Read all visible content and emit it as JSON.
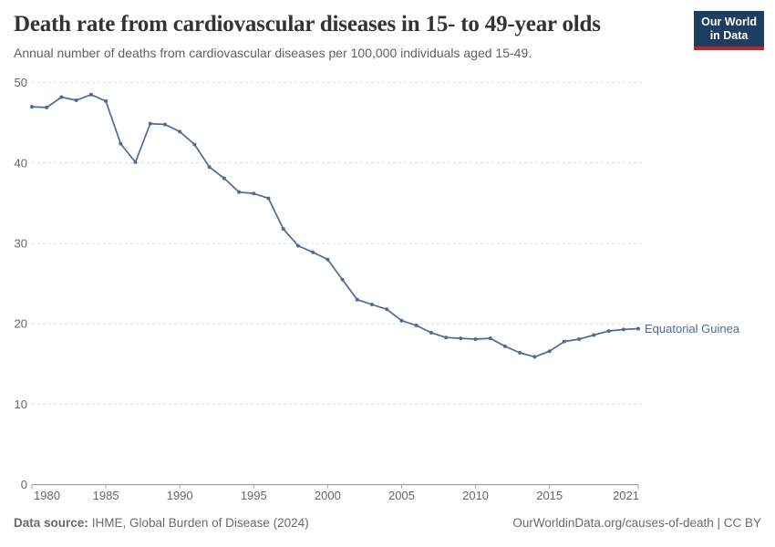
{
  "header": {
    "title": "Death rate from cardiovascular diseases in 15- to 49-year olds",
    "subtitle": "Annual number of deaths from cardiovascular diseases per 100,000 individuals aged 15-49.",
    "logo": {
      "line1": "Our World",
      "line2": "in Data",
      "bg_color": "#1d3d63",
      "accent_color": "#b5292c"
    }
  },
  "footer": {
    "source_label": "Data source:",
    "source_value": "IHME, Global Burden of Disease (2024)",
    "rights": "OurWorldinData.org/causes-of-death | CC BY"
  },
  "chart_data": {
    "type": "line",
    "title": "Death rate from cardiovascular diseases in 15- to 49-year olds",
    "xlabel": "",
    "ylabel": "",
    "xlim": [
      1980,
      2021
    ],
    "ylim": [
      0,
      50
    ],
    "xticks": [
      1980,
      1985,
      1990,
      1995,
      2000,
      2005,
      2010,
      2015,
      2021
    ],
    "yticks": [
      0,
      10,
      20,
      30,
      40,
      50
    ],
    "grid": "horizontal-dashed",
    "legend_position": "end-of-line",
    "series": [
      {
        "name": "Equatorial Guinea",
        "color": "#4c6a9c",
        "x": [
          1980,
          1981,
          1982,
          1983,
          1984,
          1985,
          1986,
          1987,
          1988,
          1989,
          1990,
          1991,
          1992,
          1993,
          1994,
          1995,
          1996,
          1997,
          1998,
          1999,
          2000,
          2001,
          2002,
          2003,
          2004,
          2005,
          2006,
          2007,
          2008,
          2009,
          2010,
          2011,
          2012,
          2013,
          2014,
          2015,
          2016,
          2017,
          2018,
          2019,
          2020,
          2021
        ],
        "values": [
          47.0,
          46.9,
          48.2,
          47.8,
          48.5,
          47.7,
          42.4,
          40.1,
          44.9,
          44.8,
          43.9,
          42.3,
          39.5,
          38.1,
          36.4,
          36.2,
          35.6,
          31.8,
          29.7,
          28.9,
          28.0,
          25.5,
          23.0,
          22.4,
          21.8,
          20.4,
          19.8,
          18.9,
          18.3,
          18.2,
          18.1,
          18.2,
          17.2,
          16.4,
          15.9,
          16.6,
          17.8,
          18.1,
          18.6,
          19.1,
          19.3,
          19.4
        ]
      }
    ]
  }
}
